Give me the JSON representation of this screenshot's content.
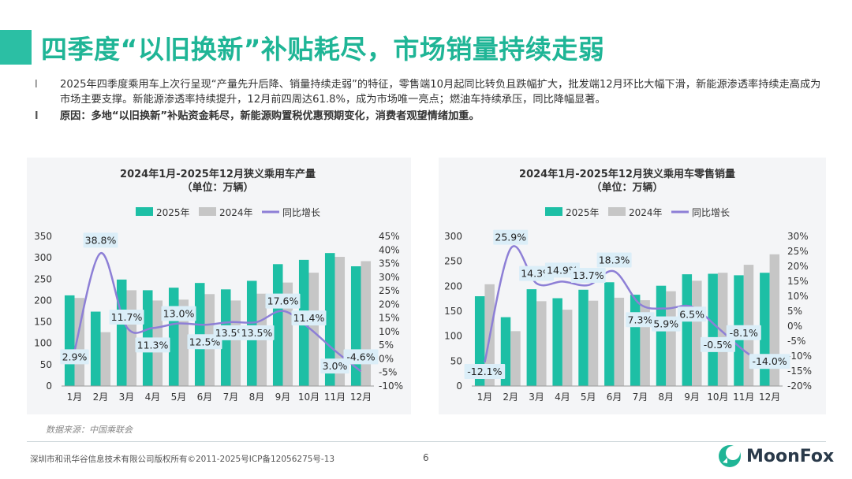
{
  "title": "四季度“以旧换新”补贴耗尽，市场销量持续走弱",
  "bullets": [
    {
      "marker": "l",
      "text": "2025年四季度乘用车上次行呈现“产量先升后降、销量持续走弱”的特征，零售端10月起同比转负且跌幅扩大，批发端12月环比大幅下滑，新能源渗透率持续走高成为市场主要支撑。新能源渗透率持续提升，12月前四周达61.8%，成为市场唯一亮点；燃油车持续承压，同比降幅显著。"
    },
    {
      "marker": "l",
      "text": "原因：多地“以旧换新”补贴资金耗尽，新能源购置税优惠预期变化，消费者观望情绪加重。"
    }
  ],
  "colors": {
    "c2025": "#1dbfa5",
    "c2024": "#c6c6c6",
    "yoy": "#8d7fd6",
    "title": "#1fb596",
    "labelBg": "#dbeef8"
  },
  "chart_data": [
    {
      "type": "bar",
      "title": "2024年1月-2025年12月狭义乘用车产量",
      "subtitle": "（单位：万辆）",
      "categories": [
        "1月",
        "2月",
        "3月",
        "4月",
        "5月",
        "6月",
        "7月",
        "8月",
        "9月",
        "10月",
        "11月",
        "12月"
      ],
      "series": [
        {
          "name": "2025年",
          "values": [
            212,
            174,
            249,
            224,
            230,
            241,
            226,
            246,
            285,
            295,
            311,
            280
          ]
        },
        {
          "name": "2024年",
          "values": [
            206,
            126,
            224,
            200,
            202,
            215,
            200,
            216,
            242,
            265,
            302,
            292
          ]
        },
        {
          "name": "同比增长",
          "type": "line",
          "axis": "right",
          "values": [
            2.9,
            38.8,
            11.7,
            11.3,
            13.0,
            12.5,
            13.5,
            13.5,
            17.6,
            11.4,
            3.0,
            -4.6
          ]
        }
      ],
      "data_labels": [
        "2.9%",
        "38.8%",
        "11.7%",
        "11.3%",
        "13.0%",
        "12.5%",
        "13.5%",
        "13.5%",
        "17.6%",
        "11.4%",
        "3.0%",
        "-4.6%"
      ],
      "y_ticks": [
        "0",
        "50",
        "100",
        "150",
        "200",
        "250",
        "300",
        "350"
      ],
      "y2_ticks": [
        "-10%",
        "-5%",
        "0%",
        "5%",
        "10%",
        "15%",
        "20%",
        "25%",
        "30%",
        "35%",
        "40%",
        "45%"
      ],
      "ylim": [
        0,
        350
      ],
      "y2lim": [
        -10,
        45
      ],
      "legend": "top-center"
    },
    {
      "type": "bar",
      "title": "2024年1月-2025年12月狭义乘用车零售销量",
      "subtitle": "（单位：万辆）",
      "categories": [
        "1月",
        "2月",
        "3月",
        "4月",
        "5月",
        "6月",
        "7月",
        "8月",
        "9月",
        "10月",
        "11月",
        "12月"
      ],
      "series": [
        {
          "name": "2025年",
          "values": [
            180,
            138,
            194,
            176,
            193,
            208,
            183,
            201,
            224,
            225,
            222,
            227
          ]
        },
        {
          "name": "2024年",
          "values": [
            204,
            110,
            170,
            153,
            171,
            177,
            172,
            190,
            211,
            227,
            243,
            264
          ]
        },
        {
          "name": "同比增长",
          "type": "line",
          "axis": "right",
          "values": [
            -12.1,
            25.9,
            14.3,
            14.9,
            13.7,
            18.3,
            7.3,
            5.9,
            6.5,
            -0.5,
            -8.1,
            -14.0
          ]
        }
      ],
      "data_labels": [
        "-12.1%",
        "25.9%",
        "14.3%",
        "14.9%",
        "13.7%",
        "18.3%",
        "7.3%",
        "5.9%",
        "6.5%",
        "-0.5%",
        "-8.1%",
        "-14.0%"
      ],
      "y_ticks": [
        "0",
        "50",
        "100",
        "150",
        "200",
        "250",
        "300"
      ],
      "y2_ticks": [
        "-20%",
        "-15%",
        "-10%",
        "-5%",
        "0%",
        "5%",
        "10%",
        "15%",
        "20%",
        "25%",
        "30%"
      ],
      "ylim": [
        0,
        300
      ],
      "y2lim": [
        -20,
        30
      ],
      "legend": "top-center"
    }
  ],
  "source": "数据来源：中国乘联会",
  "footer": "深圳市和讯华谷信息技术有限公司版权所有©2011-2025号ICP备12056275号-13",
  "page_number": "6",
  "logo": {
    "text": "MoonFox",
    "icon": "moonfox-logo-icon"
  }
}
